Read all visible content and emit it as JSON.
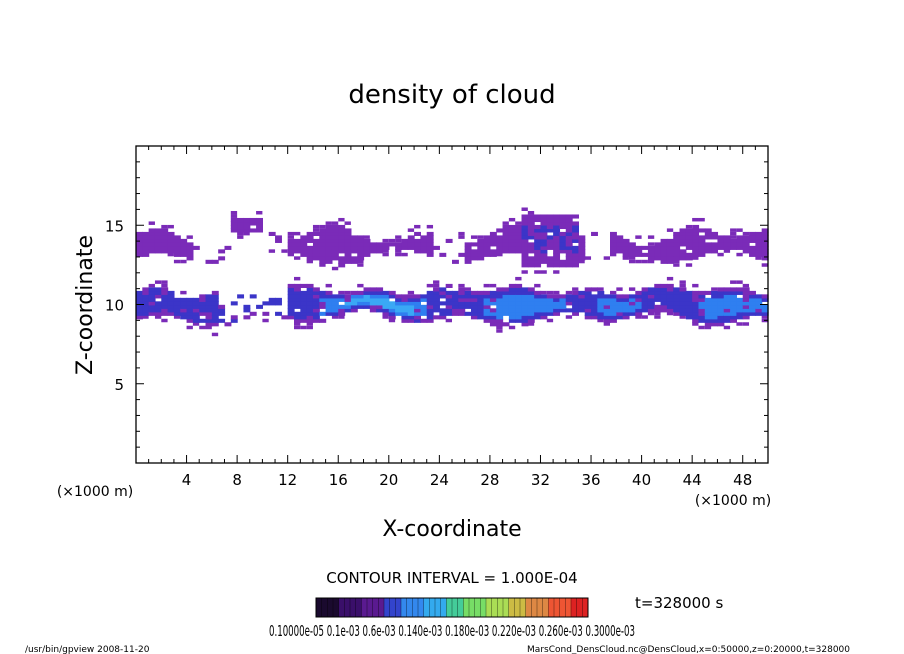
{
  "chart_data": {
    "type": "heatmap",
    "title": "density of cloud",
    "xlabel": "X-coordinate",
    "ylabel": "Z-coordinate",
    "x_unit": "(×1000 m)",
    "y_unit": "(×1000 m)",
    "xlim": [
      0,
      50
    ],
    "ylim": [
      0,
      20
    ],
    "x_ticks": [
      "4",
      "8",
      "12",
      "16",
      "20",
      "24",
      "28",
      "32",
      "36",
      "40",
      "44",
      "48"
    ],
    "y_ticks": [
      "5",
      "10",
      "15"
    ],
    "contour_interval": "CONTOUR INTERVAL = 1.000E-04",
    "time_label": "t=328000 s",
    "colorbar_labels": "0.10000e-05 0.1e-03 0.6e-03 0.140e-03 0.180e-03 0.220e-03 0.260e-03 0.3000e-03",
    "colorbar_colors": [
      "#1a0a2e",
      "#3a0f6a",
      "#5a1a90",
      "#3344cc",
      "#3388ee",
      "#33aaee",
      "#44cc99",
      "#77dd66",
      "#aadd55",
      "#ccbb44",
      "#dd8844",
      "#ee5533",
      "#dd2222"
    ],
    "cloud_colors": {
      "low": "#7a2bb8",
      "mid": "#3b35c8",
      "high": "#2f7ff0",
      "peak": "#3aa8f5"
    },
    "bands": [
      {
        "z_range": [
          12.5,
          15.5
        ],
        "level": "low"
      },
      {
        "z_range": [
          8.5,
          11.3
        ],
        "level": "mid"
      }
    ],
    "footer_left": "/usr/bin/gpview  2008-11-20",
    "footer_right": "MarsCond_DensCloud.nc@DensCloud,x=0:50000,z=0:20000,t=328000"
  }
}
